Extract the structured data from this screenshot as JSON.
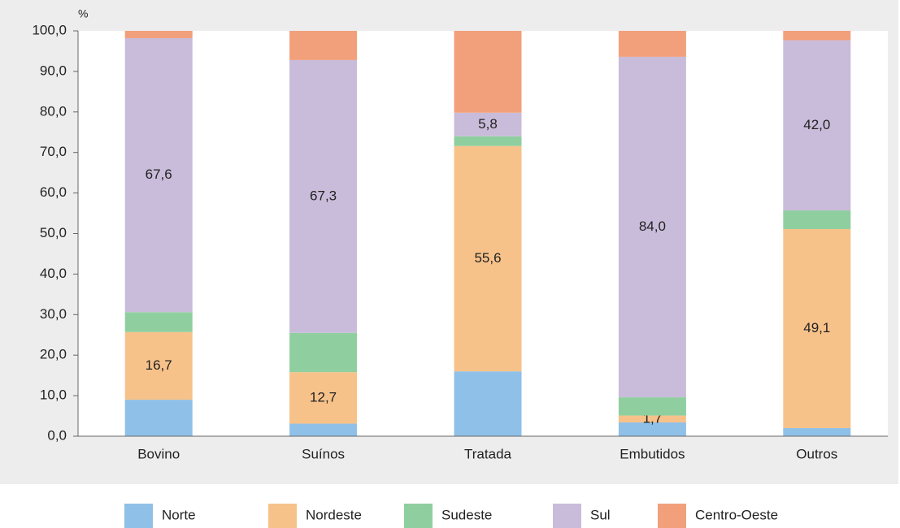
{
  "chart_data": {
    "type": "stacked_bar",
    "y_axis_label": "%",
    "categories": [
      "Bovino",
      "Suínos",
      "Tratada",
      "Embutidos",
      "Outros"
    ],
    "series": [
      {
        "name": "Norte",
        "color": "#8fc0e8",
        "values": [
          9.0,
          3.1,
          16.0,
          3.4,
          2.0
        ],
        "value_labels": [
          null,
          null,
          null,
          null,
          null
        ]
      },
      {
        "name": "Nordeste",
        "color": "#f7c28a",
        "values": [
          16.7,
          12.7,
          55.6,
          1.7,
          49.1
        ],
        "value_labels": [
          "16,7",
          "12,7",
          "55,6",
          "1,7",
          "49,1"
        ]
      },
      {
        "name": "Sudeste",
        "color": "#8fcf9f",
        "values": [
          4.9,
          9.7,
          2.4,
          4.5,
          4.6
        ],
        "value_labels": [
          null,
          null,
          null,
          null,
          null
        ]
      },
      {
        "name": "Sul",
        "color": "#c9bcda",
        "values": [
          67.6,
          67.3,
          5.8,
          84.0,
          42.0
        ],
        "value_labels": [
          "67,6",
          "67,3",
          "5,8",
          "84,0",
          "42,0"
        ]
      },
      {
        "name": "Centro-Oeste",
        "color": "#f2a07b",
        "values": [
          1.8,
          7.2,
          20.2,
          6.4,
          2.3
        ],
        "value_labels": [
          null,
          null,
          null,
          null,
          null
        ]
      }
    ],
    "ylim": [
      0,
      100
    ],
    "yticks": [
      {
        "value": 0,
        "label": "0,0"
      },
      {
        "value": 10,
        "label": "10,0"
      },
      {
        "value": 20,
        "label": "20,0"
      },
      {
        "value": 30,
        "label": "30,0"
      },
      {
        "value": 40,
        "label": "40,0"
      },
      {
        "value": 50,
        "label": "50,0"
      },
      {
        "value": 60,
        "label": "60,0"
      },
      {
        "value": 70,
        "label": "70,0"
      },
      {
        "value": 80,
        "label": "80,0"
      },
      {
        "value": 90,
        "label": "90,0"
      },
      {
        "value": 100,
        "label": "100,0"
      }
    ],
    "legend": "bottom"
  }
}
